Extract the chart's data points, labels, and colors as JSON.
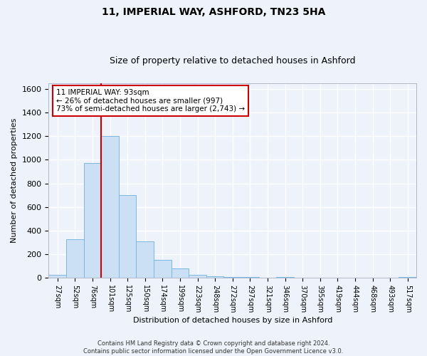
{
  "title": "11, IMPERIAL WAY, ASHFORD, TN23 5HA",
  "subtitle": "Size of property relative to detached houses in Ashford",
  "xlabel": "Distribution of detached houses by size in Ashford",
  "ylabel": "Number of detached properties",
  "bin_labels": [
    "27sqm",
    "52sqm",
    "76sqm",
    "101sqm",
    "125sqm",
    "150sqm",
    "174sqm",
    "199sqm",
    "223sqm",
    "248sqm",
    "272sqm",
    "297sqm",
    "321sqm",
    "346sqm",
    "370sqm",
    "395sqm",
    "419sqm",
    "444sqm",
    "468sqm",
    "493sqm",
    "517sqm"
  ],
  "bar_heights": [
    25,
    325,
    970,
    1200,
    700,
    310,
    155,
    80,
    25,
    15,
    10,
    10,
    0,
    10,
    0,
    0,
    0,
    0,
    0,
    0,
    10
  ],
  "bar_color": "#cce0f5",
  "bar_edge_color": "#7ab8e0",
  "red_line_color": "#cc0000",
  "red_line_bin_index": 2,
  "ylim": [
    0,
    1650
  ],
  "yticks": [
    0,
    200,
    400,
    600,
    800,
    1000,
    1200,
    1400,
    1600
  ],
  "annotation_line1": "11 IMPERIAL WAY: 93sqm",
  "annotation_line2": "← 26% of detached houses are smaller (997)",
  "annotation_line3": "73% of semi-detached houses are larger (2,743) →",
  "annotation_box_color": "#ffffff",
  "annotation_box_edge": "#cc0000",
  "footer": "Contains HM Land Registry data © Crown copyright and database right 2024.\nContains public sector information licensed under the Open Government Licence v3.0.",
  "background_color": "#eef2fb",
  "grid_color": "#ffffff",
  "title_fontsize": 10,
  "subtitle_fontsize": 9,
  "ylabel_fontsize": 8,
  "xlabel_fontsize": 8,
  "tick_fontsize": 7,
  "footer_fontsize": 6
}
